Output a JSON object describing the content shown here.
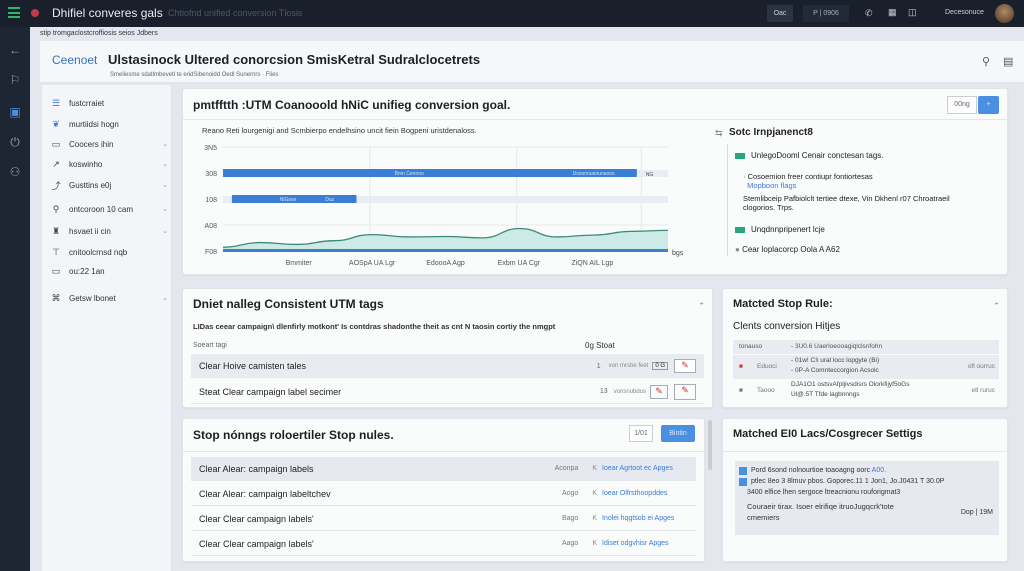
{
  "topbar": {
    "app_title": "Dhifiel converes gals",
    "subtitle": "Chtiofnd unified conversion Tlosis",
    "btn1": "Oac",
    "btn2": "P | 0906",
    "user": "Decesonuce"
  },
  "strip": "stip tromgaclostcroffiosis seios  Jdbers",
  "header": {
    "breadcrumb": "Ceenoet",
    "title": "Ulstasinock Ultered conorcsion SmisKetral Sudralclocetrets",
    "subtitle": "Smeliesme sdatlmbevetl te eridSibenoidd Oedl Sunernrs · Flies"
  },
  "sidebar": {
    "items": [
      {
        "label": "fustcrraiet",
        "icon": "list-icon"
      },
      {
        "label": "murtiidsi hogn",
        "icon": "tag-icon"
      },
      {
        "label": "Coocers ihin",
        "icon": "calendar-icon",
        "chev": true
      },
      {
        "label": "koswinho",
        "icon": "link-icon",
        "chev": true
      },
      {
        "label": "Gusttins e0j",
        "icon": "share-icon",
        "chev": true
      },
      {
        "label": "ontcoroon 10 cam",
        "icon": "pin-icon",
        "chev": true
      },
      {
        "label": "hsvaet ii cin",
        "icon": "people-icon",
        "chev": true
      },
      {
        "label": "cnitoolcrnsd nqb",
        "icon": "filter-icon"
      },
      {
        "label": "ou:22 1an",
        "icon": "folder-icon"
      },
      {
        "label": "Getsw lbonet",
        "icon": "network-icon",
        "chev": true
      }
    ]
  },
  "goal_card": {
    "title": "pmtfftth :UTM Coanooold hNiC unifieg conversion goal.",
    "btn_label": "00ng",
    "caption": "Reano Reti lourgenigi and Scmbierpo endelhsino uncit fiein Bogpeni uristdenaloss.",
    "legend_title": "Sotc Irnpjanenct8",
    "legend": [
      {
        "label": "UnlegoDooml Cenair conctesan tags.",
        "color": "#2aa67a"
      },
      {
        "bullet": "Cosoemion freer contiupr fontiortesas",
        "link": "Mopboon flags"
      },
      {
        "bullet": "Stemlibceip Pafbiolclt tertiee dtexe, Vin Dkhenl r07 Chroatraeil clogorios. Trps."
      },
      {
        "label": "Unqdnnpripenert lcje",
        "color": "#2aa67a"
      },
      {
        "dot": "Cear loplacorcp Oola A A62"
      }
    ]
  },
  "chart_data": {
    "type": "area",
    "yticks": [
      "3N5",
      "308",
      "108",
      "A08",
      "F08"
    ],
    "xticks": [
      "Bmmiter",
      "AOSpA UA Lgr",
      "EdoooA Agp",
      "Exbm UA Cgr",
      "ZiQN AIL Lgp"
    ],
    "xlabel": "bgs",
    "bars": [
      {
        "label": "Bmn Cennoo",
        "label2": "Dosonnuenunaoos",
        "end_label": "NG",
        "start": 0,
        "end": 0.93
      },
      {
        "label": "NIGsse",
        "label2": "Daz",
        "start": 0.02,
        "end": 0.3
      }
    ],
    "series": [
      {
        "values": [
          0.08,
          0.18,
          0.14,
          0.22,
          0.35,
          0.3,
          0.31,
          0.28,
          0.48,
          0.3,
          0.34,
          0.42,
          0.44
        ]
      }
    ]
  },
  "utm_card": {
    "title": "Dniet nalleg Consistent UTM tags",
    "desc": "LIDas ceear campaign\\ dlenfirly motkont' Is contdras shadonthe theit as cnt N taosin cortiy the nmgpt",
    "col1": "Soeart tagi",
    "col2": "0g  Stoat",
    "rows": [
      {
        "name": "Clear Hoive camisten tales",
        "num": "1",
        "meta": "von mrsbe feet",
        "chip": "0 G"
      },
      {
        "name": "Steat Clear campaign label secimer",
        "num": "13",
        "meta": "vonsnubdus"
      }
    ]
  },
  "matched_rule": {
    "title": "Matcted Stop Rule:",
    "subtitle": "Clents conversion Hitjes",
    "rows": [
      {
        "tag": "tonauso",
        "text": "- 3U0.6 Uaerloeooagiqlclsnfohn"
      },
      {
        "tag": "Eduoci",
        "text": "- 01w! C!i ural locc lopgyte (Bi)\n- 0P-A Comnteccorgion Acsolc",
        "status": "ofl ourruc"
      },
      {
        "tag": "Taooo",
        "text": "DJA1O1 ostsvAfpljivsdisrs Olorkfijyf5oGs\nUl@.5T Tfde lagbnnngs",
        "status": "etl ruruc"
      }
    ]
  },
  "stop_rules": {
    "title": "Stop nónngs roloertiler Stop nules.",
    "btn1": "1/01",
    "btn2": "Bintin",
    "rows": [
      {
        "name": "Clear Alear: campaign labels",
        "tag": "Aconpa",
        "link": "Ioear Agrtoot ec Apges"
      },
      {
        "name": "Clear Alear: campaign labeltchev",
        "tag": "Aogo",
        "link": "Ioear Olfrsthoopddes"
      },
      {
        "name": "Clear Clear campaign labels'",
        "tag": "Bago",
        "link": "Inolei hqgtsob ei Apges"
      },
      {
        "name": "Clear Clear campaign labels'",
        "tag": "Aago",
        "link": "Idiset odgvhisr Apges"
      }
    ]
  },
  "settings": {
    "title": "Matched EI0 Lacs/Cosgrecer Settigs",
    "l1": "Pord 6sond  nolnourtioe toaoagng oorc",
    "l1b": "A00.",
    "l2": "ptlec 8eo 3 8lmuv pbos. Goporec.11 1 Jon1, Jo.J0431 T 30.0P",
    "l3": "3400 elfice lhen sergoce ltreacnionu rouforigmat3",
    "l4": "Couraeir tirax. Isoer elrifiqe itruoJugqcrk'tote cmemiers",
    "status": "Dop | 19M"
  }
}
